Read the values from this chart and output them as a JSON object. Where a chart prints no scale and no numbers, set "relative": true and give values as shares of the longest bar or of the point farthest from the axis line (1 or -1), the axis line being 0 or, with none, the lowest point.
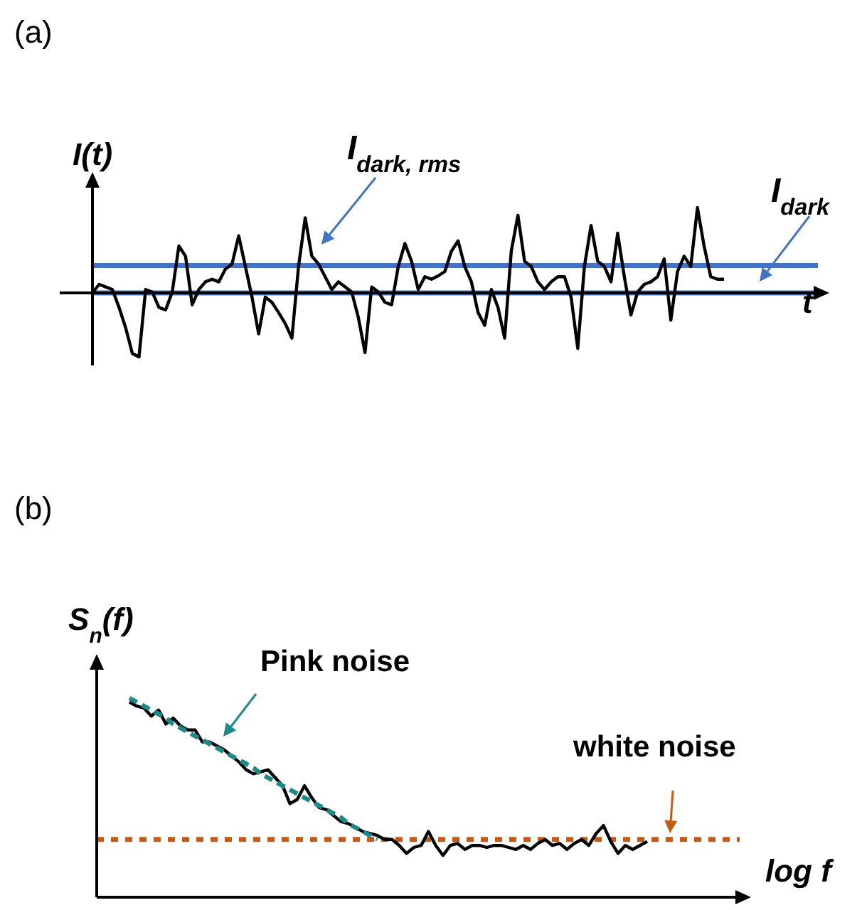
{
  "chart_data": [
    {
      "type": "line",
      "title": "(a)",
      "xlabel": "t",
      "ylabel": "I(t)",
      "relative": true,
      "marker": "none",
      "categories": [
        null,
        null,
        null,
        null,
        null,
        null,
        null,
        null,
        null,
        null,
        null,
        null,
        null,
        null,
        null,
        null,
        null,
        null,
        null,
        null,
        null,
        null,
        null,
        null,
        null,
        null,
        null,
        null,
        null,
        null,
        null,
        null,
        null,
        null,
        null,
        null,
        null,
        null,
        null,
        null,
        null,
        null,
        null,
        null,
        null,
        null,
        null,
        null,
        null,
        null,
        null,
        null,
        null,
        null,
        null,
        null,
        null,
        null,
        null,
        null,
        null,
        null,
        null,
        null,
        null,
        null,
        null,
        null,
        null,
        null,
        null,
        null,
        null,
        null,
        null,
        null,
        null,
        null,
        null,
        null,
        null,
        null,
        null,
        null,
        null,
        null,
        null,
        null,
        null,
        null,
        null,
        null,
        null,
        null,
        null,
        null
      ],
      "series": [
        {
          "color": "#000000",
          "line_style": "solid",
          "values": [
            0,
            0.1,
            0.07,
            0.04,
            -0.17,
            -0.41,
            -0.71,
            -0.75,
            0.04,
            0.01,
            -0.17,
            -0.2,
            0.01,
            0.55,
            0.43,
            -0.14,
            0.04,
            0.13,
            0.16,
            0.13,
            0.28,
            0.34,
            0.67,
            0.31,
            -0.05,
            -0.48,
            -0.05,
            -0.11,
            -0.23,
            -0.36,
            -0.53,
            0.31,
            0.88,
            0.43,
            0.34,
            0.19,
            0.04,
            0.13,
            0.07,
            0.01,
            -0.29,
            -0.7,
            0.07,
            0.01,
            -0.11,
            -0.14,
            0.31,
            0.58,
            0.37,
            0.04,
            0.19,
            0.16,
            0.2,
            0.25,
            0.49,
            0.61,
            0.31,
            0.13,
            -0.23,
            -0.38,
            0.04,
            -0.17,
            -0.53,
            0.49,
            0.91,
            0.37,
            0.31,
            0.13,
            0.04,
            0.13,
            0.19,
            0.19,
            -0.05,
            -0.65,
            0.31,
            0.79,
            0.37,
            0.31,
            0.13,
            0.7,
            0.19,
            -0.26,
            0.01,
            0.1,
            0.13,
            0.19,
            0.4,
            -0.32,
            0.25,
            0.43,
            0.31,
            1.0,
            0.55,
            0.19,
            0.16,
            0.16
          ]
        }
      ],
      "ref_lines": [
        {
          "axis": "y",
          "value": 0.32,
          "label": "I$_{dark, rms}$",
          "color": "#4472c4",
          "line_style": "solid"
        },
        {
          "axis": "y",
          "value": 0,
          "label": "I$_{dark}$",
          "color": "#4472c4",
          "line_style": "solid"
        }
      ]
    },
    {
      "type": "line",
      "title": "(b)",
      "xlabel": "log f",
      "ylabel": "S$_{n}$(f)",
      "relative": true,
      "marker": "none",
      "categories": [
        null,
        null,
        null,
        null,
        null,
        null,
        null,
        null,
        null,
        null,
        null,
        null,
        null,
        null,
        null,
        null,
        null,
        null,
        null,
        null,
        null,
        null,
        null,
        null,
        null,
        null,
        null,
        null,
        null,
        null,
        null,
        null,
        null,
        null,
        null,
        null,
        null,
        null,
        null,
        null,
        null,
        null,
        null,
        null,
        null,
        null,
        null,
        null,
        null,
        null,
        null,
        null,
        null,
        null,
        null,
        null,
        null,
        null,
        null,
        null,
        null,
        null,
        null,
        null,
        null,
        null,
        null,
        null,
        null,
        null,
        null,
        null
      ],
      "series": [
        {
          "color": "#000000",
          "line_style": "solid",
          "values": [
            0.98,
            0.96,
            0.95,
            0.91,
            0.94,
            0.87,
            0.9,
            0.86,
            0.84,
            0.84,
            0.78,
            0.78,
            0.76,
            0.74,
            0.71,
            0.68,
            0.64,
            0.62,
            0.63,
            0.64,
            0.6,
            0.56,
            0.47,
            0.49,
            0.56,
            0.5,
            0.45,
            0.44,
            0.41,
            0.38,
            0.37,
            0.35,
            0.33,
            0.32,
            0.31,
            0.29,
            0.29,
            0.26,
            0.22,
            0.25,
            0.26,
            0.33,
            0.26,
            0.21,
            0.26,
            0.27,
            0.24,
            0.26,
            0.26,
            0.25,
            0.26,
            0.26,
            0.25,
            0.24,
            0.26,
            0.24,
            0.27,
            0.29,
            0.26,
            0.27,
            0.24,
            0.27,
            0.29,
            0.26,
            0.32,
            0.36,
            0.28,
            0.22,
            0.26,
            0.24,
            0.26,
            0.28
          ]
        },
        {
          "name": "Pink noise",
          "color": "#1a8a8a",
          "line_style": "dashed",
          "values": [
            1.0,
            0.98,
            0.96,
            0.94,
            0.92,
            0.9,
            0.87,
            0.85,
            0.83,
            0.81,
            0.79,
            0.77,
            0.75,
            0.73,
            0.71,
            0.69,
            0.67,
            0.65,
            0.62,
            0.6,
            0.58,
            0.56,
            0.54,
            0.52,
            0.5,
            0.48,
            0.46,
            0.44,
            0.42,
            0.4,
            0.37,
            0.35,
            0.33,
            0.31,
            0.29,
            null,
            null,
            null,
            null,
            null,
            null,
            null,
            null,
            null,
            null,
            null,
            null,
            null,
            null,
            null,
            null,
            null,
            null,
            null,
            null,
            null,
            null,
            null,
            null,
            null,
            null,
            null,
            null,
            null,
            null,
            null,
            null,
            null,
            null,
            null,
            null,
            null
          ]
        }
      ],
      "ref_lines": [
        {
          "axis": "y",
          "value": 0.29,
          "label": "white noise",
          "color": "#c55a11",
          "line_style": "dotted"
        }
      ]
    }
  ]
}
